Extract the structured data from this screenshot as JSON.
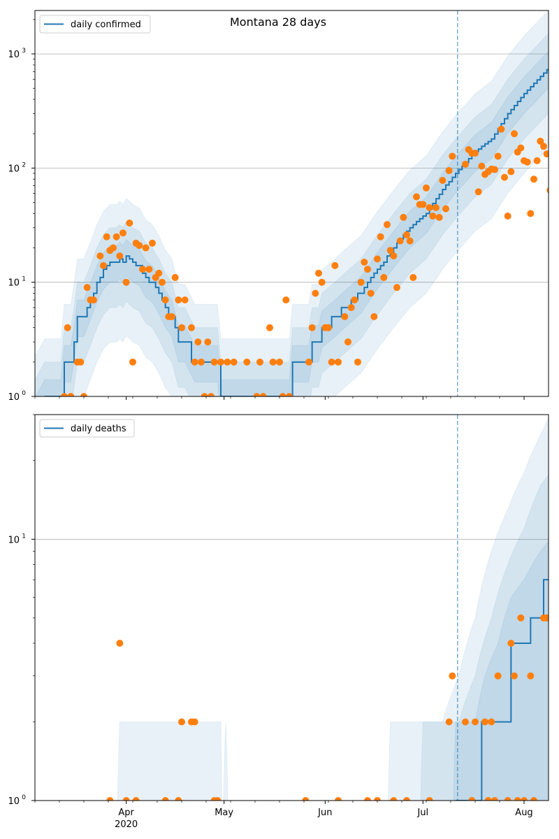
{
  "title": "Montana 28 days",
  "colors": {
    "line": "#1f77b4",
    "points": "#ff7f0e",
    "band": "#1f77b4",
    "grid": "#b0b0b0"
  },
  "chart_data": [
    {
      "type": "scatter",
      "name": "confirmed",
      "legend": "daily confirmed",
      "legend_position": "top-left",
      "x_origin": "2020-03-04",
      "xlim": [
        0,
        157.5
      ],
      "yscale": "log",
      "ylim": [
        1,
        2400
      ],
      "yticks": [
        {
          "v": 1,
          "base": "10",
          "exp": "0"
        },
        {
          "v": 10,
          "base": "10",
          "exp": "1"
        },
        {
          "v": 100,
          "base": "10",
          "exp": "2"
        },
        {
          "v": 1000,
          "base": "10",
          "exp": "3"
        }
      ],
      "forecast_start_day": 129.6,
      "points": [
        [
          9,
          1
        ],
        [
          10,
          4
        ],
        [
          11,
          1
        ],
        [
          13,
          2
        ],
        [
          14,
          2
        ],
        [
          15,
          1
        ],
        [
          16,
          9
        ],
        [
          17,
          7
        ],
        [
          18,
          7
        ],
        [
          20,
          17
        ],
        [
          21,
          14
        ],
        [
          22,
          25
        ],
        [
          23,
          19
        ],
        [
          24,
          20
        ],
        [
          25,
          25
        ],
        [
          26,
          17
        ],
        [
          27,
          27
        ],
        [
          28,
          10
        ],
        [
          29,
          33
        ],
        [
          30,
          2
        ],
        [
          31,
          22
        ],
        [
          32,
          21
        ],
        [
          33,
          13
        ],
        [
          34,
          20
        ],
        [
          35,
          13
        ],
        [
          36,
          22
        ],
        [
          37,
          11
        ],
        [
          38,
          12
        ],
        [
          39,
          10
        ],
        [
          40,
          7
        ],
        [
          41,
          5
        ],
        [
          42,
          5
        ],
        [
          43,
          11
        ],
        [
          44,
          7
        ],
        [
          45,
          4
        ],
        [
          46,
          7
        ],
        [
          48,
          4
        ],
        [
          49,
          2
        ],
        [
          50,
          3
        ],
        [
          51,
          2
        ],
        [
          52,
          1
        ],
        [
          53,
          3
        ],
        [
          54,
          1
        ],
        [
          55,
          2
        ],
        [
          57,
          2
        ],
        [
          59,
          2
        ],
        [
          61,
          2
        ],
        [
          65,
          2
        ],
        [
          68,
          1
        ],
        [
          69,
          2
        ],
        [
          70,
          1
        ],
        [
          72,
          4
        ],
        [
          73,
          2
        ],
        [
          75,
          2
        ],
        [
          76,
          1
        ],
        [
          77,
          7
        ],
        [
          78,
          1
        ],
        [
          84,
          2
        ],
        [
          85,
          4
        ],
        [
          86,
          8
        ],
        [
          87,
          12
        ],
        [
          88,
          10
        ],
        [
          89,
          4
        ],
        [
          90,
          4
        ],
        [
          91,
          2
        ],
        [
          92,
          14
        ],
        [
          93,
          2
        ],
        [
          95,
          5
        ],
        [
          96,
          3
        ],
        [
          97,
          6
        ],
        [
          98,
          7
        ],
        [
          99,
          2
        ],
        [
          100,
          10
        ],
        [
          101,
          15
        ],
        [
          102,
          13
        ],
        [
          103,
          8
        ],
        [
          104,
          5
        ],
        [
          105,
          16
        ],
        [
          106,
          25
        ],
        [
          107,
          11
        ],
        [
          108,
          32
        ],
        [
          109,
          19
        ],
        [
          110,
          17
        ],
        [
          111,
          9
        ],
        [
          112,
          23
        ],
        [
          113,
          37
        ],
        [
          114,
          26
        ],
        [
          115,
          23
        ],
        [
          116,
          11
        ],
        [
          117,
          56
        ],
        [
          118,
          48
        ],
        [
          119,
          48
        ],
        [
          120,
          67
        ],
        [
          121,
          45
        ],
        [
          122,
          38
        ],
        [
          123,
          45
        ],
        [
          124,
          37
        ],
        [
          125,
          78
        ],
        [
          126,
          44
        ],
        [
          127,
          95
        ],
        [
          128,
          127
        ],
        [
          132,
          108
        ],
        [
          133,
          145
        ],
        [
          134,
          135
        ],
        [
          135,
          135
        ],
        [
          136,
          62
        ],
        [
          137,
          104
        ],
        [
          138,
          88
        ],
        [
          139,
          93
        ],
        [
          140,
          98
        ],
        [
          141,
          97
        ],
        [
          142,
          127
        ],
        [
          143,
          219
        ],
        [
          144,
          83
        ],
        [
          145,
          38
        ],
        [
          146,
          93
        ],
        [
          147,
          200
        ],
        [
          148,
          138
        ],
        [
          149,
          150
        ],
        [
          150,
          116
        ],
        [
          151,
          113
        ],
        [
          152,
          40
        ],
        [
          153,
          80
        ],
        [
          154,
          116
        ],
        [
          155,
          172
        ],
        [
          156,
          155
        ],
        [
          157,
          133
        ],
        [
          158,
          64
        ]
      ],
      "median": [
        [
          3,
          1
        ],
        [
          8,
          1
        ],
        [
          9,
          2
        ],
        [
          11,
          2
        ],
        [
          12,
          3
        ],
        [
          13,
          5
        ],
        [
          15,
          5
        ],
        [
          17,
          7
        ],
        [
          19,
          10
        ],
        [
          21,
          13
        ],
        [
          23,
          15
        ],
        [
          25,
          15
        ],
        [
          26,
          16
        ],
        [
          27,
          15
        ],
        [
          28,
          17
        ],
        [
          30,
          15
        ],
        [
          32,
          14
        ],
        [
          34,
          11
        ],
        [
          36,
          10
        ],
        [
          38,
          8
        ],
        [
          40,
          6
        ],
        [
          42,
          5
        ],
        [
          44,
          3
        ],
        [
          46,
          3
        ],
        [
          49,
          2
        ],
        [
          51,
          2
        ],
        [
          56,
          2
        ],
        [
          57,
          1
        ],
        [
          78,
          1
        ],
        [
          79,
          2
        ],
        [
          84,
          2
        ],
        [
          85,
          3
        ],
        [
          87,
          3
        ],
        [
          88,
          4
        ],
        [
          92,
          5
        ],
        [
          95,
          6
        ],
        [
          100,
          8
        ],
        [
          105,
          13
        ],
        [
          110,
          20
        ],
        [
          115,
          30
        ],
        [
          120,
          40
        ],
        [
          125,
          65
        ],
        [
          129,
          90
        ],
        [
          135,
          140
        ],
        [
          140,
          180
        ],
        [
          145,
          300
        ],
        [
          150,
          450
        ],
        [
          158,
          780
        ]
      ],
      "bands": [
        {
          "upper_factor": 3.2,
          "lower_factor": 5
        },
        {
          "upper_factor": 2.0,
          "lower_factor": 2.5
        },
        {
          "upper_factor": 1.4,
          "lower_factor": 1.5
        }
      ]
    },
    {
      "type": "scatter",
      "name": "deaths",
      "legend": "daily deaths",
      "legend_position": "top-left",
      "x_origin": "2020-03-04",
      "xlim": [
        0,
        157.5
      ],
      "yscale": "log",
      "ylim": [
        1,
        30
      ],
      "yticks": [
        {
          "v": 1,
          "base": "10",
          "exp": "0"
        },
        {
          "v": 10,
          "base": "10",
          "exp": "1"
        }
      ],
      "forecast_start_day": 129.6,
      "points": [
        [
          23,
          1
        ],
        [
          26,
          4
        ],
        [
          28,
          1
        ],
        [
          31,
          1
        ],
        [
          40,
          1
        ],
        [
          44,
          1
        ],
        [
          45,
          2
        ],
        [
          48,
          2
        ],
        [
          49,
          2
        ],
        [
          55,
          1
        ],
        [
          56,
          1
        ],
        [
          83,
          1
        ],
        [
          93,
          1
        ],
        [
          102,
          1
        ],
        [
          105,
          1
        ],
        [
          110,
          1
        ],
        [
          114,
          1
        ],
        [
          121,
          1
        ],
        [
          127,
          2
        ],
        [
          128,
          3
        ],
        [
          132,
          2
        ],
        [
          134,
          1
        ],
        [
          135,
          2
        ],
        [
          138,
          2
        ],
        [
          139,
          1
        ],
        [
          140,
          2
        ],
        [
          141,
          1
        ],
        [
          142,
          3
        ],
        [
          145,
          1
        ],
        [
          146,
          4
        ],
        [
          147,
          3
        ],
        [
          148,
          1
        ],
        [
          149,
          5
        ],
        [
          150,
          1
        ],
        [
          152,
          3
        ],
        [
          153,
          1
        ],
        [
          156,
          5
        ],
        [
          157,
          5
        ]
      ],
      "median": [
        [
          129,
          1
        ],
        [
          136.9,
          1
        ],
        [
          137,
          2
        ],
        [
          145.9,
          2
        ],
        [
          146,
          4
        ],
        [
          151.9,
          4
        ],
        [
          152,
          5
        ],
        [
          155.9,
          5
        ],
        [
          156,
          7
        ],
        [
          158,
          7
        ]
      ],
      "band_uppers": [
        [
          [
            25,
            0.5
          ],
          [
            26,
            2
          ],
          [
            57,
            2
          ],
          [
            57.5,
            0.5
          ],
          [
            58.5,
            2
          ],
          [
            59.5,
            0.5
          ],
          [
            108,
            0.5
          ],
          [
            109,
            2
          ],
          [
            125,
            2
          ],
          [
            130,
            3
          ],
          [
            135,
            5
          ],
          [
            140,
            9
          ],
          [
            145,
            13
          ],
          [
            150,
            18
          ],
          [
            155,
            25
          ],
          [
            158,
            30
          ]
        ],
        [
          [
            118,
            0.5
          ],
          [
            119,
            2
          ],
          [
            130,
            2
          ],
          [
            135,
            3
          ],
          [
            140,
            5
          ],
          [
            145,
            8
          ],
          [
            150,
            11
          ],
          [
            155,
            16
          ],
          [
            158,
            18
          ]
        ],
        [
          [
            128,
            0.5
          ],
          [
            129,
            2
          ],
          [
            135,
            2
          ],
          [
            138,
            3
          ],
          [
            142,
            4
          ],
          [
            146,
            6
          ],
          [
            150,
            7
          ],
          [
            155,
            9
          ],
          [
            158,
            10
          ]
        ]
      ]
    }
  ],
  "xaxis": {
    "ticks": [
      {
        "day": 28,
        "label": "Apr",
        "sub": "2020"
      },
      {
        "day": 58,
        "label": "May",
        "sub": ""
      },
      {
        "day": 89,
        "label": "Jun",
        "sub": ""
      },
      {
        "day": 119,
        "label": "Jul",
        "sub": ""
      },
      {
        "day": 150,
        "label": "Aug",
        "sub": ""
      }
    ]
  }
}
